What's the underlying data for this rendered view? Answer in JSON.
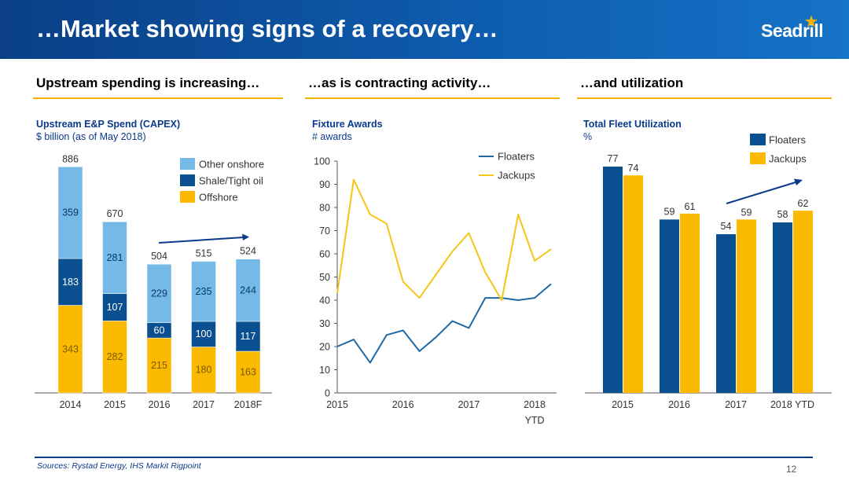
{
  "header": {
    "title": "…Market showing signs of a recovery…",
    "logo_text": "Seadrill"
  },
  "sections": [
    {
      "heading": "Upstream spending is increasing…"
    },
    {
      "heading": "…as is contracting activity…"
    },
    {
      "heading": "…and utilization"
    }
  ],
  "colors": {
    "light_blue": "#75b9e6",
    "dark_blue": "#0a4f8f",
    "gold": "#fbb900",
    "line_blue": "#1f6aa6",
    "line_gold": "#f5c518"
  },
  "chart_data": [
    {
      "type": "bar",
      "stacked": true,
      "title": "Upstream E&P Spend (CAPEX)",
      "subtitle": "$ billion (as of May 2018)",
      "categories": [
        "2014",
        "2015",
        "2016",
        "2017",
        "2018F"
      ],
      "totals": [
        "886",
        "670",
        "504",
        "515",
        "524"
      ],
      "series": [
        {
          "name": "Offshore",
          "values": [
            343,
            282,
            215,
            180,
            163
          ]
        },
        {
          "name": "Shale/Tight oil",
          "values": [
            183,
            107,
            60,
            100,
            117
          ]
        },
        {
          "name": "Other onshore",
          "values": [
            359,
            281,
            229,
            235,
            244
          ]
        }
      ],
      "legend": [
        "Other onshore",
        "Shale/Tight oil",
        "Offshore"
      ],
      "legend_position": "top-right",
      "ylim": [
        0,
        886
      ]
    },
    {
      "type": "line",
      "title": "Fixture Awards",
      "subtitle": "# awards",
      "x": [
        "2015 Q1",
        "2015 Q2",
        "2015 Q3",
        "2015 Q4",
        "2016 Q1",
        "2016 Q2",
        "2016 Q3",
        "2016 Q4",
        "2017 Q1",
        "2017 Q2",
        "2017 Q3",
        "2017 Q4",
        "2018 Q1",
        "2018 Q2"
      ],
      "xtick_labels": [
        "2015",
        "2016",
        "2017",
        "2018",
        "YTD"
      ],
      "yticks": [
        "0",
        "10",
        "20",
        "30",
        "40",
        "50",
        "60",
        "70",
        "80",
        "90",
        "100"
      ],
      "ylim": [
        0,
        100
      ],
      "series": [
        {
          "name": "Floaters",
          "values": [
            20,
            23,
            13,
            25,
            27,
            18,
            24,
            31,
            28,
            41,
            41,
            40,
            41,
            47
          ]
        },
        {
          "name": "Jackups",
          "values": [
            43,
            92,
            77,
            73,
            48,
            41,
            51,
            61,
            69,
            52,
            40,
            77,
            57,
            62
          ]
        }
      ],
      "legend": [
        "Floaters",
        "Jackups"
      ],
      "legend_position": "top-right",
      "grid": false
    },
    {
      "type": "bar",
      "title": "Total Fleet Utilization",
      "subtitle": "%",
      "categories": [
        "2015",
        "2016",
        "2017",
        "2018 YTD"
      ],
      "series": [
        {
          "name": "Floaters",
          "values": [
            77,
            59,
            54,
            58
          ]
        },
        {
          "name": "Jackups",
          "values": [
            74,
            61,
            59,
            62
          ]
        }
      ],
      "legend": [
        "Floaters",
        "Jackups"
      ],
      "legend_position": "top-right",
      "ylim": [
        0,
        100
      ]
    }
  ],
  "footer": {
    "source": "Sources: Rystad Energy, IHS Markit Rigpoint",
    "page": "12"
  }
}
